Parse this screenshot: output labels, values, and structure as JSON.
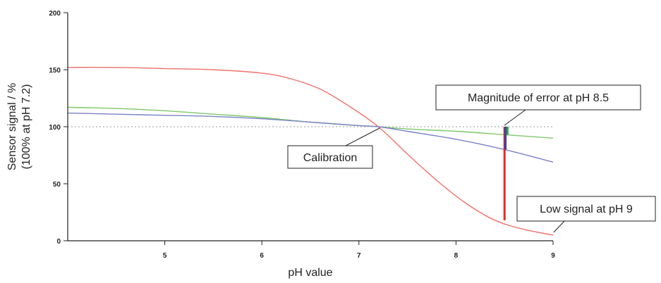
{
  "chart_data": {
    "type": "line",
    "xlabel": "pH value",
    "ylabel_line1": "Sensor signal / %",
    "ylabel_line2": "(100% at pH 7.2)",
    "xlim": [
      4.0,
      9.0
    ],
    "ylim": [
      0,
      200
    ],
    "x_ticks": [
      5,
      6,
      7,
      8,
      9
    ],
    "y_ticks": [
      0,
      50,
      100,
      150,
      200
    ],
    "reference_line": {
      "y": 100,
      "style": "dotted",
      "color": "#999999"
    },
    "series": [
      {
        "color": "#f0706a",
        "x": [
          4.0,
          4.5,
          5.0,
          5.5,
          6.0,
          6.3,
          6.6,
          6.9,
          7.2,
          7.5,
          7.8,
          8.1,
          8.4,
          8.7,
          9.0
        ],
        "y": [
          152,
          152,
          151,
          150,
          147,
          142,
          133,
          118,
          100,
          76,
          53,
          33,
          18,
          10,
          5
        ]
      },
      {
        "color": "#7ec86a",
        "x": [
          4.0,
          4.5,
          5.0,
          5.5,
          6.0,
          6.5,
          7.0,
          7.2,
          7.5,
          8.0,
          8.5,
          9.0
        ],
        "y": [
          117,
          116,
          114,
          111,
          108,
          104,
          101,
          100,
          98,
          96,
          93,
          90
        ]
      },
      {
        "color": "#7c82c8",
        "x": [
          4.0,
          4.5,
          5.0,
          5.5,
          6.0,
          6.5,
          7.0,
          7.2,
          7.5,
          8.0,
          8.5,
          9.0
        ],
        "y": [
          112,
          111,
          110,
          109,
          107,
          104,
          101,
          100,
          96,
          89,
          80,
          69
        ]
      }
    ],
    "error_bars": [
      {
        "x": 8.5,
        "y_from": 18,
        "y_to": 100,
        "color": "#e8271d"
      },
      {
        "x": 8.51,
        "y_from": 80,
        "y_to": 100,
        "color": "#3a3fa8"
      },
      {
        "x": 8.53,
        "y_from": 93,
        "y_to": 100,
        "color": "#2ea14a"
      }
    ],
    "annotations": [
      {
        "text": "Calibration",
        "anchor": "bottom-left of curve crossing"
      },
      {
        "text": "Magnitude of error at pH 8.5",
        "anchor": "above error bars"
      },
      {
        "text": "Low signal at pH 9",
        "anchor": "above curve end"
      }
    ]
  }
}
